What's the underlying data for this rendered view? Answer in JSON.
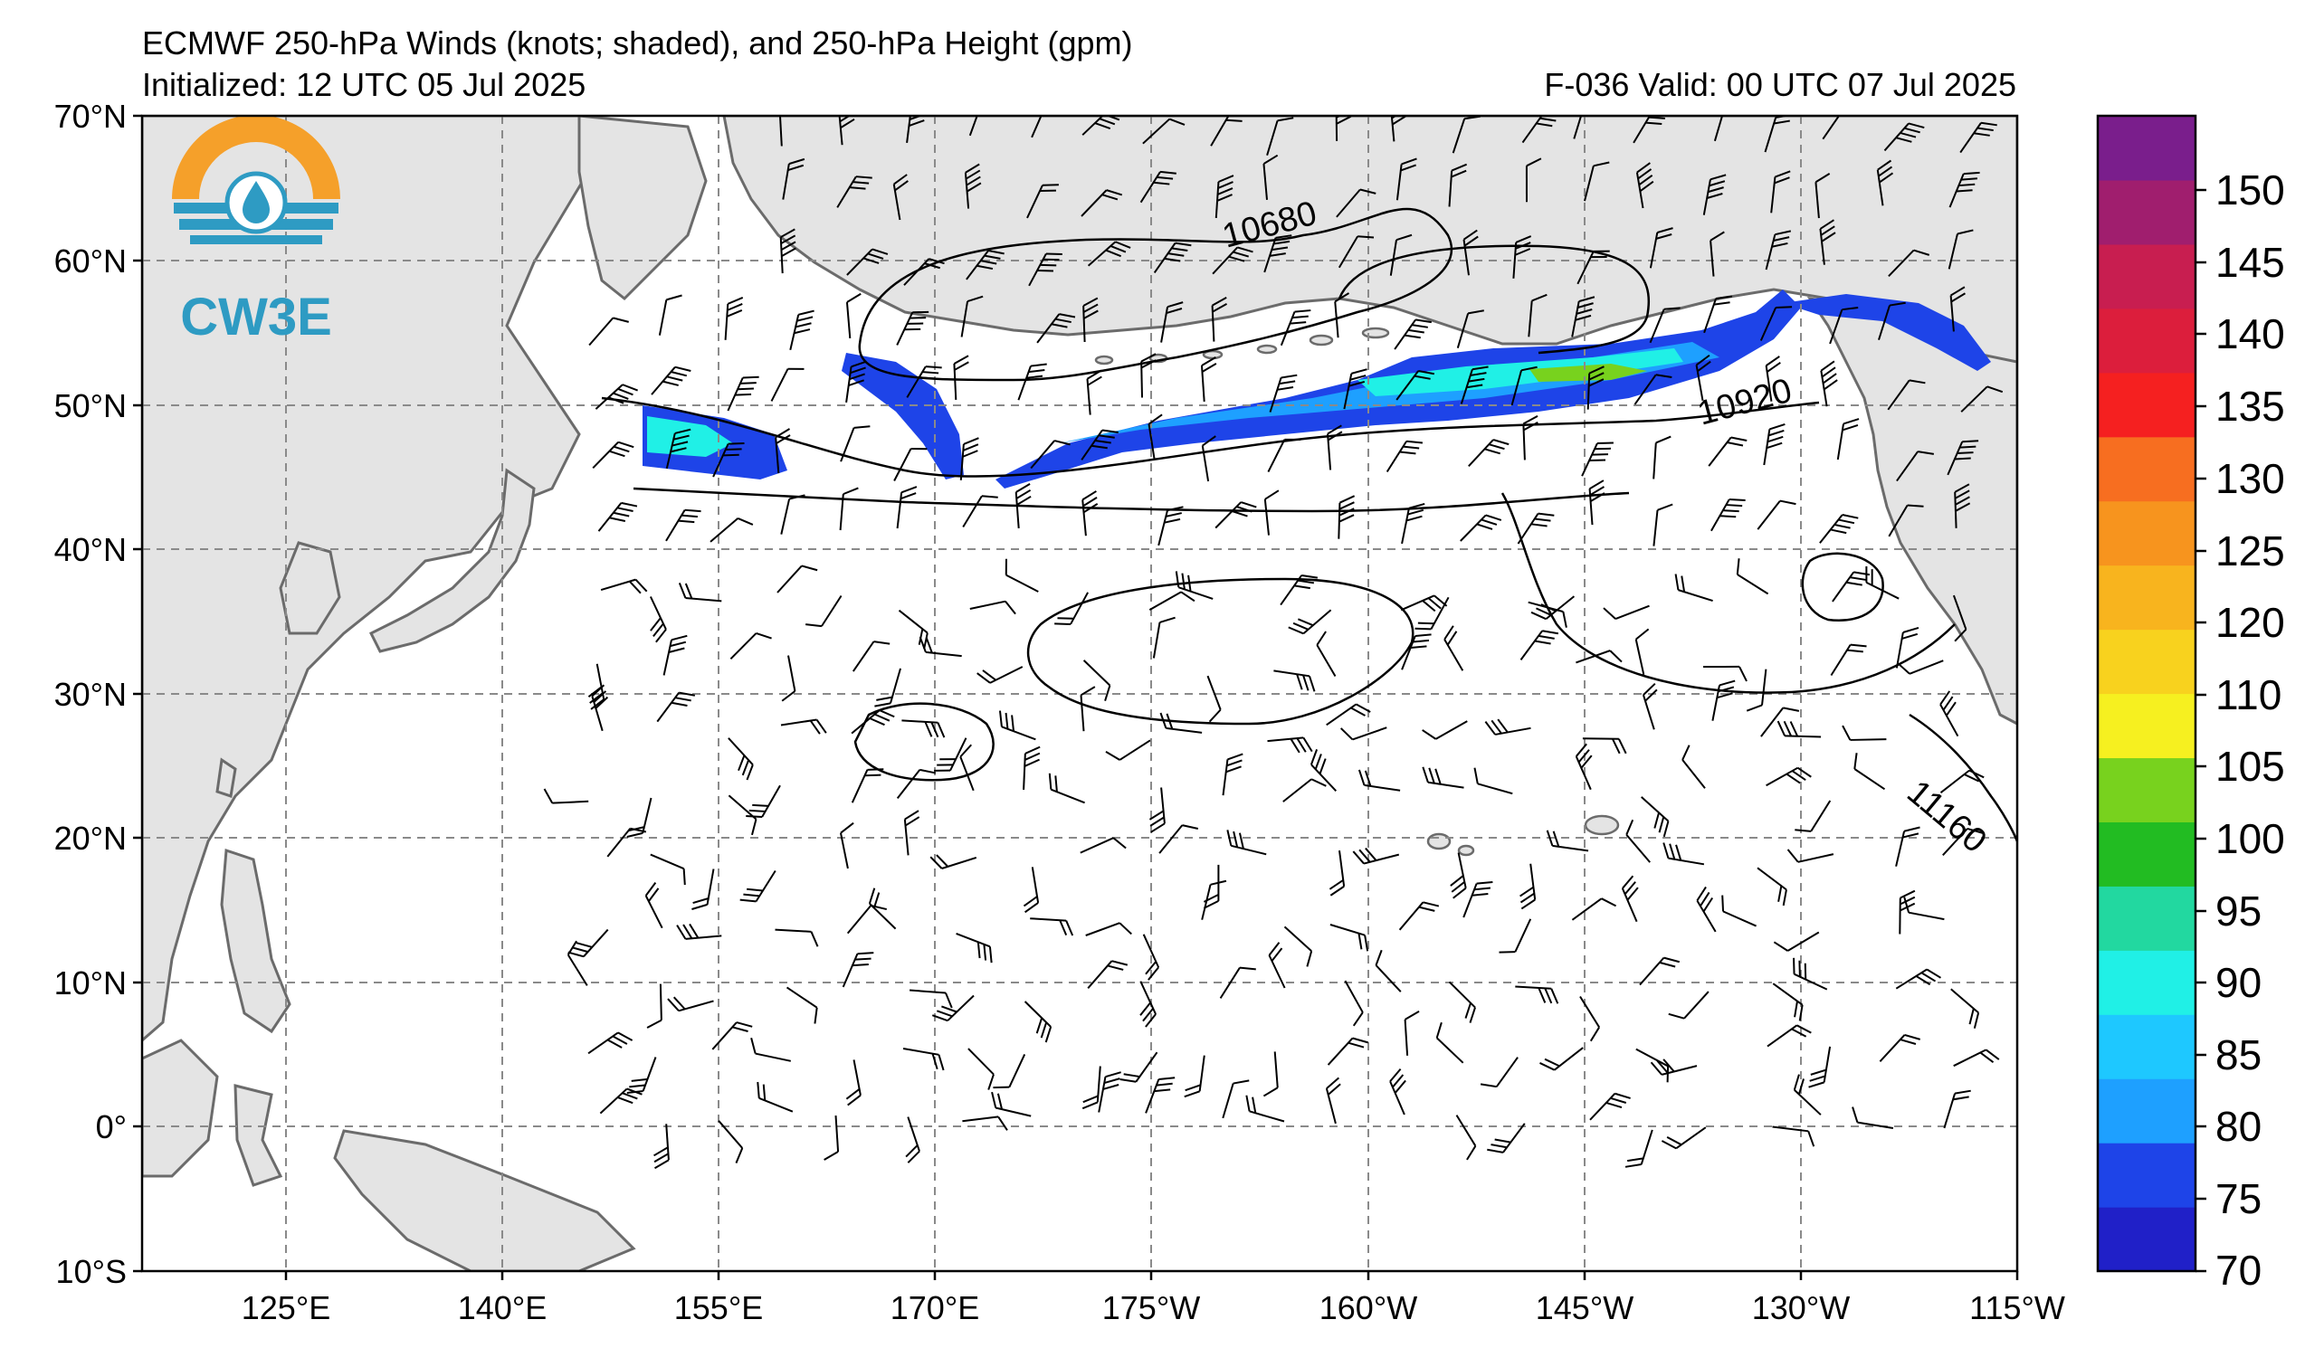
{
  "header": {
    "title": "ECMWF 250-hPa Winds (knots; shaded), and 250-hPa Height (gpm)",
    "initialized": "Initialized: 12 UTC 05 Jul 2025",
    "valid": "F-036  Valid: 00 UTC 07 Jul 2025"
  },
  "logo": {
    "text": "CW3E",
    "colors": {
      "orange": "#F5A02A",
      "teal": "#2E9BC3"
    }
  },
  "map": {
    "lat_labels": [
      "70°N",
      "60°N",
      "50°N",
      "40°N",
      "30°N",
      "20°N",
      "10°N",
      "0°",
      "10°S"
    ],
    "lon_labels": [
      "125°E",
      "140°E",
      "155°E",
      "170°E",
      "175°W",
      "160°W",
      "145°W",
      "130°W",
      "115°W"
    ],
    "contour_labels": [
      "10680",
      "10920",
      "11160"
    ],
    "colors": {
      "land": "#e4e4e4",
      "coast": "#6b6b6b",
      "ocean": "#ffffff",
      "grid": "#8a8a8a"
    }
  },
  "colorbar": {
    "ticks": [
      "150",
      "145",
      "140",
      "135",
      "130",
      "125",
      "120",
      "110",
      "105",
      "100",
      "95",
      "90",
      "85",
      "80",
      "75",
      "70"
    ],
    "colors": [
      "#2020c8",
      "#1e44e8",
      "#1ea0ff",
      "#1ec8ff",
      "#20f0e6",
      "#22d8a0",
      "#22bc22",
      "#78d21e",
      "#f6f020",
      "#f8d21e",
      "#f8b41e",
      "#f7941e",
      "#f76e20",
      "#f52020",
      "#dc1e3c",
      "#c81e50",
      "#a01e6e",
      "#7a1e8c"
    ]
  }
}
